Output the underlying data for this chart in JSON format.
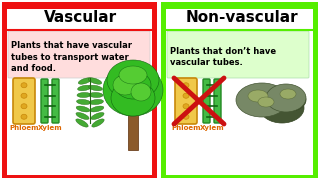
{
  "left_title": "Vascular",
  "right_title": "Non-vascular",
  "left_desc": "Plants that have vascular\ntubes to transport water\nand food.",
  "right_desc": "Plants that don’t have\nvascular tubes.",
  "left_bg": "#ee1111",
  "right_bg": "#55ee00",
  "white": "#ffffff",
  "left_desc_bg": "#ffdddd",
  "right_desc_bg": "#ddffcc",
  "label_color": "#dd6600",
  "cross_color": "#cc1111",
  "phloem_body": "#f0c84a",
  "phloem_edge": "#c8880a",
  "phloem_inner": "#e0a820",
  "xylem_body": "#44bb44",
  "xylem_edge": "#228822",
  "xylem_inner": "#116611",
  "trunk_color": "#8B5a2B",
  "tree_green": "#33bb22",
  "tree_edge": "#116611",
  "fern_green": "#44aa33",
  "fern_edge": "#226611",
  "rock_green": "#778866",
  "rock_dark": "#445533",
  "label_phloem": "Phloem",
  "label_xylem": "Xylem",
  "title_fontsize": 11,
  "desc_fontsize": 6.0,
  "label_fontsize": 5.0
}
